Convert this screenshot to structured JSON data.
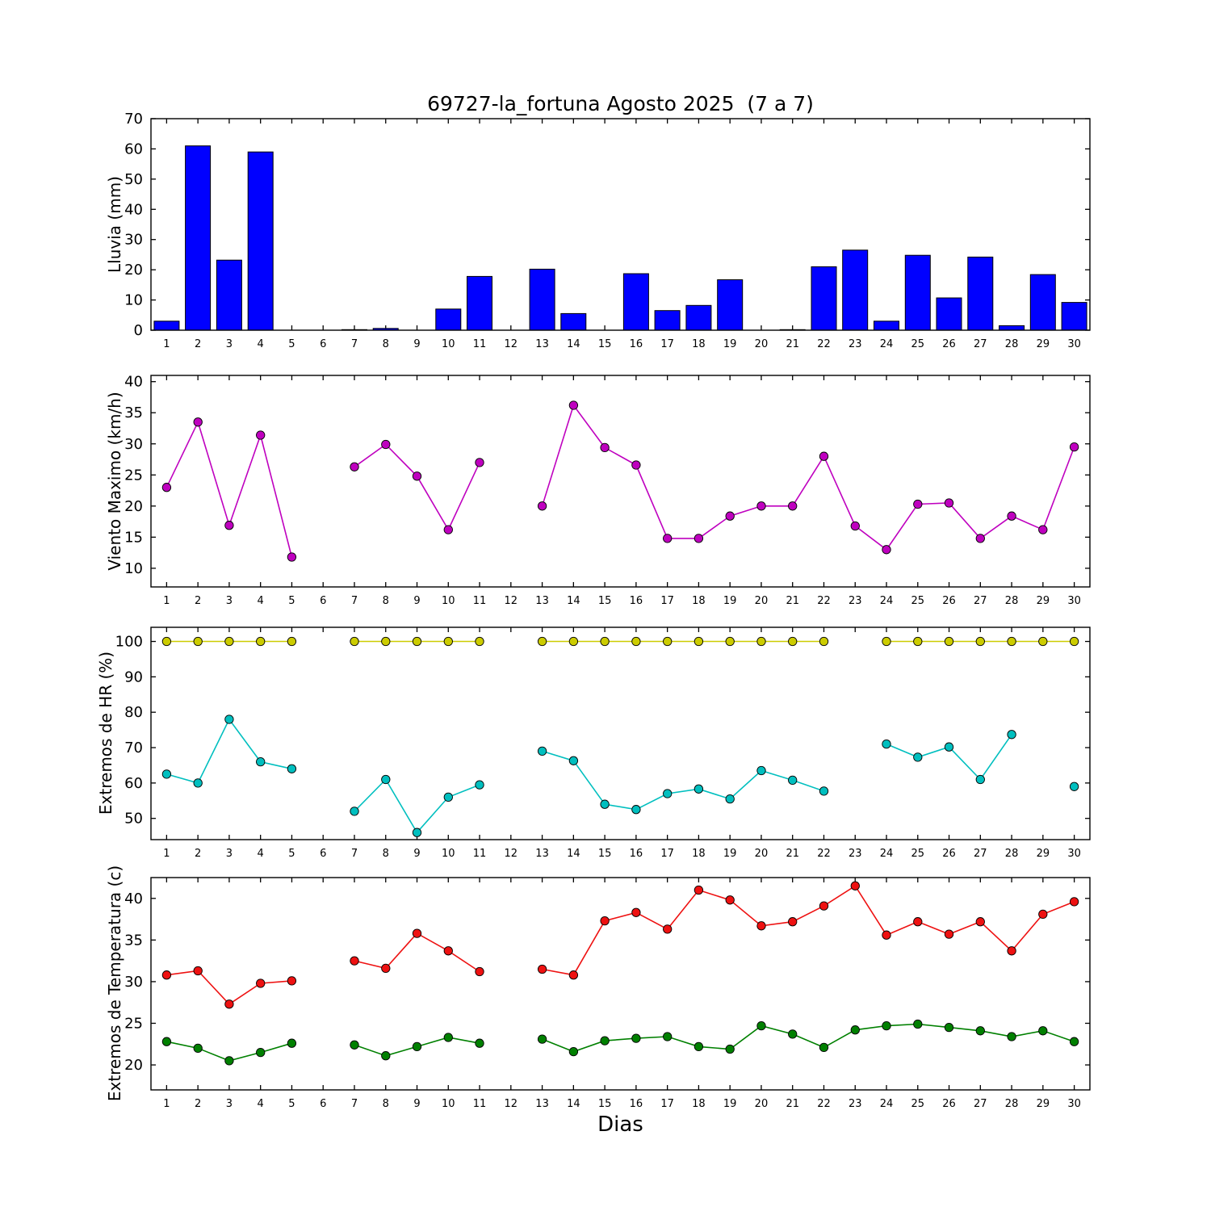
{
  "title": "69727-la_fortuna Agosto 2025  (7 a 7)",
  "xlabel": "Dias",
  "colors": {
    "rain": "#0000ff",
    "wind": "#bf00bf",
    "hr_max": "#cccc00",
    "hr_min": "#00bfbf",
    "temp_max": "#ee1111",
    "temp_min": "#008000",
    "axis": "#000000",
    "background": "#ffffff"
  },
  "chart_data": [
    {
      "type": "bar",
      "name": "lluvia",
      "ylabel": "Lluvia (mm)",
      "color": "#0000ff",
      "ylim": [
        0,
        70
      ],
      "yticks": [
        0,
        10,
        20,
        30,
        40,
        50,
        60,
        70
      ],
      "x": [
        1,
        2,
        3,
        4,
        5,
        6,
        7,
        8,
        9,
        10,
        11,
        12,
        13,
        14,
        15,
        16,
        17,
        18,
        19,
        20,
        21,
        22,
        23,
        24,
        25,
        26,
        27,
        28,
        29,
        30
      ],
      "values": [
        3,
        61,
        23.2,
        59,
        0,
        0,
        0.2,
        0.6,
        0,
        7,
        17.8,
        0,
        20.2,
        5.5,
        0,
        18.7,
        6.5,
        8.2,
        16.7,
        0,
        0.2,
        21,
        26.5,
        3,
        24.8,
        10.7,
        24.2,
        1.5,
        18.4,
        9.2
      ]
    },
    {
      "type": "line",
      "name": "viento",
      "ylabel": "Viento Maximo (km/h)",
      "color": "#bf00bf",
      "ylim": [
        7,
        41
      ],
      "yticks": [
        10,
        15,
        20,
        25,
        30,
        35,
        40
      ],
      "x": [
        1,
        2,
        3,
        4,
        5,
        6,
        7,
        8,
        9,
        10,
        11,
        12,
        13,
        14,
        15,
        16,
        17,
        18,
        19,
        20,
        21,
        22,
        23,
        24,
        25,
        26,
        27,
        28,
        29,
        30
      ],
      "values": [
        23,
        33.5,
        16.9,
        31.4,
        11.8,
        null,
        26.3,
        29.9,
        24.8,
        16.2,
        27,
        null,
        20,
        36.2,
        29.4,
        26.6,
        14.8,
        14.8,
        18.4,
        20,
        20,
        28,
        16.8,
        13,
        20.3,
        20.5,
        14.8,
        18.4,
        16.2,
        29.5
      ]
    },
    {
      "type": "line",
      "name": "hr",
      "ylabel": "Extremos de HR (%)",
      "ylim": [
        44,
        104
      ],
      "yticks": [
        50,
        60,
        70,
        80,
        90,
        100
      ],
      "x": [
        1,
        2,
        3,
        4,
        5,
        6,
        7,
        8,
        9,
        10,
        11,
        12,
        13,
        14,
        15,
        16,
        17,
        18,
        19,
        20,
        21,
        22,
        23,
        24,
        25,
        26,
        27,
        28,
        29,
        30
      ],
      "series": [
        {
          "name": "hr-maxima",
          "color": "#cccc00",
          "values": [
            100,
            100,
            100,
            100,
            100,
            null,
            100,
            100,
            100,
            100,
            100,
            null,
            100,
            100,
            100,
            100,
            100,
            100,
            100,
            100,
            100,
            100,
            null,
            100,
            100,
            100,
            100,
            100,
            100,
            100
          ]
        },
        {
          "name": "hr-minima",
          "color": "#00bfbf",
          "values": [
            62.5,
            60,
            78,
            66,
            64,
            null,
            52,
            61,
            46,
            56,
            59.5,
            null,
            69,
            66.3,
            54,
            52.5,
            57,
            58.3,
            55.5,
            63.5,
            60.8,
            57.7,
            null,
            71,
            67.3,
            70.2,
            61,
            73.7,
            null,
            59
          ]
        }
      ]
    },
    {
      "type": "line",
      "name": "temperatura",
      "ylabel": "Extremos de Temperatura (c)",
      "ylim": [
        17,
        42.5
      ],
      "yticks": [
        20,
        25,
        30,
        35,
        40
      ],
      "x": [
        1,
        2,
        3,
        4,
        5,
        6,
        7,
        8,
        9,
        10,
        11,
        12,
        13,
        14,
        15,
        16,
        17,
        18,
        19,
        20,
        21,
        22,
        23,
        24,
        25,
        26,
        27,
        28,
        29,
        30
      ],
      "series": [
        {
          "name": "temp-maxima",
          "color": "#ee1111",
          "values": [
            30.8,
            31.3,
            27.3,
            29.8,
            30.1,
            null,
            32.5,
            31.6,
            35.8,
            33.7,
            31.2,
            null,
            31.5,
            30.8,
            37.3,
            38.3,
            36.3,
            41,
            39.8,
            36.7,
            37.2,
            39.1,
            41.5,
            35.6,
            37.2,
            35.7,
            37.2,
            33.7,
            38.1,
            39.6
          ]
        },
        {
          "name": "temp-minima",
          "color": "#008000",
          "values": [
            22.8,
            22,
            20.5,
            21.5,
            22.6,
            null,
            22.4,
            21.1,
            22.2,
            23.3,
            22.6,
            null,
            23.1,
            21.6,
            22.9,
            23.2,
            23.4,
            22.2,
            21.9,
            24.7,
            23.7,
            22.1,
            24.2,
            24.7,
            24.9,
            24.5,
            24.1,
            23.4,
            24.1,
            22.8
          ]
        }
      ]
    }
  ]
}
